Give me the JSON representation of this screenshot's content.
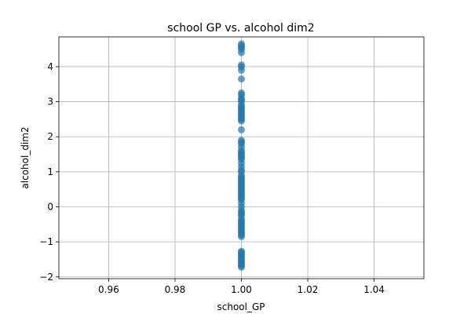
{
  "chart_data": {
    "type": "scatter",
    "title": "school GP vs. alcohol dim2",
    "xlabel": "school_GP",
    "ylabel": "alcohol_dim2",
    "xlim": [
      0.945,
      1.055
    ],
    "ylim": [
      -2.05,
      4.85
    ],
    "xticks": [
      0.96,
      0.98,
      1.0,
      1.02,
      1.04
    ],
    "xtick_labels": [
      "0.96",
      "0.98",
      "1.00",
      "1.02",
      "1.04"
    ],
    "yticks": [
      -2,
      -1,
      0,
      1,
      2,
      3,
      4
    ],
    "ytick_labels": [
      "−2",
      "−1",
      "0",
      "1",
      "2",
      "3",
      "4"
    ],
    "grid": true,
    "marker_color": "#1f77b4",
    "series": [
      {
        "x": [
          1,
          1,
          1,
          1,
          1,
          1,
          1,
          1,
          1,
          1,
          1,
          1,
          1,
          1,
          1,
          1,
          1,
          1,
          1,
          1,
          1,
          1,
          1,
          1,
          1,
          1,
          1,
          1,
          1,
          1,
          1,
          1,
          1,
          1,
          1,
          1,
          1,
          1,
          1,
          1,
          1,
          1,
          1,
          1,
          1,
          1,
          1,
          1,
          1,
          1,
          1,
          1,
          1,
          1,
          1,
          1,
          1,
          1,
          1,
          1,
          1,
          1,
          1,
          1,
          1,
          1,
          1,
          1,
          1,
          1,
          1,
          1,
          1,
          1,
          1,
          1,
          1,
          1,
          1,
          1,
          1,
          1
        ],
        "y": [
          -1.72,
          -1.68,
          -1.64,
          -1.6,
          -1.55,
          -1.5,
          -1.45,
          -1.4,
          -1.35,
          -1.3,
          -1.27,
          -0.85,
          -0.8,
          -0.75,
          -0.7,
          -0.65,
          -0.6,
          -0.55,
          -0.5,
          -0.45,
          -0.4,
          -0.35,
          -0.25,
          -0.1,
          0.0,
          0.1,
          0.2,
          0.3,
          0.35,
          0.4,
          0.45,
          0.5,
          0.55,
          0.6,
          0.65,
          0.7,
          0.75,
          0.8,
          0.9,
          1.0,
          1.05,
          1.15,
          1.25,
          1.35,
          1.45,
          1.5,
          1.55,
          1.6,
          1.7,
          1.8,
          1.85,
          1.9,
          2.2,
          2.45,
          2.5,
          2.55,
          2.6,
          2.65,
          2.7,
          2.75,
          2.8,
          2.85,
          2.9,
          3.0,
          3.05,
          3.1,
          3.2,
          3.25,
          3.65,
          3.9,
          4.0,
          4.05,
          4.4,
          4.5,
          4.55,
          4.6,
          4.65,
          -0.2,
          -0.15,
          0.25,
          0.85,
          1.4
        ]
      }
    ]
  }
}
